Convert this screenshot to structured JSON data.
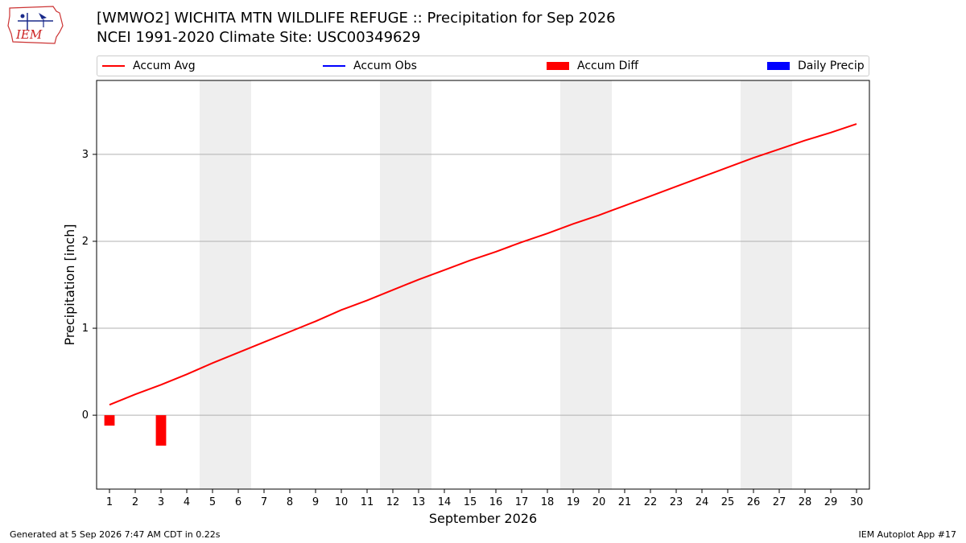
{
  "header": {
    "title_line1": "[WMWO2] WICHITA MTN WILDLIFE REFUGE :: Precipitation for Sep 2026",
    "title_line2": "NCEI 1991-2020 Climate Site: USC00349629",
    "logo_text": "IEM"
  },
  "legend": [
    {
      "label": "Accum Avg",
      "color": "#ff0000",
      "kind": "line"
    },
    {
      "label": "Accum Obs",
      "color": "#0000ff",
      "kind": "line"
    },
    {
      "label": "Accum Diff",
      "color": "#ff0000",
      "kind": "bar"
    },
    {
      "label": "Daily Precip",
      "color": "#0000ff",
      "kind": "bar"
    }
  ],
  "footer": {
    "left": "Generated at 5 Sep 2026 7:47 AM CDT in 0.22s",
    "right": "IEM Autoplot App #17"
  },
  "chart_data": {
    "type": "line",
    "xlabel": "September 2026",
    "ylabel": "Precipitation [inch]",
    "xlim": [
      0.5,
      30.5
    ],
    "ylim": [
      -0.85,
      3.85
    ],
    "yticks": [
      0,
      1,
      2,
      3
    ],
    "xticks": [
      1,
      2,
      3,
      4,
      5,
      6,
      7,
      8,
      9,
      10,
      11,
      12,
      13,
      14,
      15,
      16,
      17,
      18,
      19,
      20,
      21,
      22,
      23,
      24,
      25,
      26,
      27,
      28,
      29,
      30
    ],
    "grid": "horizontal",
    "weekend_shading": [
      [
        4.5,
        6.5
      ],
      [
        11.5,
        13.5
      ],
      [
        18.5,
        20.5
      ],
      [
        25.5,
        27.5
      ]
    ],
    "series": [
      {
        "name": "Accum Avg",
        "type": "line",
        "color": "#ff0000",
        "x": [
          1,
          2,
          3,
          4,
          5,
          6,
          7,
          8,
          9,
          10,
          11,
          12,
          13,
          14,
          15,
          16,
          17,
          18,
          19,
          20,
          21,
          22,
          23,
          24,
          25,
          26,
          27,
          28,
          29,
          30
        ],
        "values": [
          0.12,
          0.24,
          0.35,
          0.47,
          0.6,
          0.72,
          0.84,
          0.96,
          1.08,
          1.21,
          1.32,
          1.44,
          1.56,
          1.67,
          1.78,
          1.88,
          1.99,
          2.09,
          2.2,
          2.3,
          2.41,
          2.52,
          2.63,
          2.74,
          2.85,
          2.96,
          3.06,
          3.16,
          3.25,
          3.35
        ]
      },
      {
        "name": "Accum Diff",
        "type": "bar",
        "color": "#ff0000",
        "x": [
          1,
          3
        ],
        "values": [
          -0.12,
          -0.35
        ]
      }
    ]
  }
}
